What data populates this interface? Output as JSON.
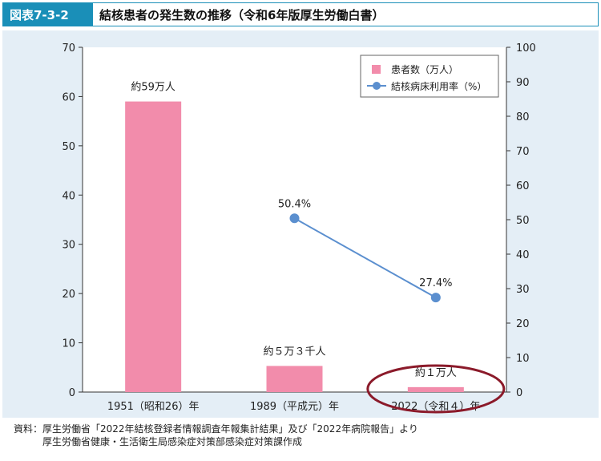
{
  "figure": {
    "label": "図表7-3-2",
    "title": "結核患者の発生数の推移（令和6年版厚生労働白書）"
  },
  "chart_data": {
    "type": "bar",
    "categories": [
      "1951（昭和26）年",
      "1989（平成元）年",
      "2022（令和４）年"
    ],
    "series": [
      {
        "name": "患者数（万人）",
        "type": "bar",
        "axis": "left",
        "values": [
          59,
          5.3,
          1
        ],
        "labels": [
          "約59万人",
          "約５万３千人",
          "約１万人"
        ],
        "color": "#f28cab"
      },
      {
        "name": "結核病床利用率（%）",
        "type": "line",
        "axis": "right",
        "values": [
          null,
          50.4,
          27.4
        ],
        "labels": [
          "",
          "50.4%",
          "27.4%"
        ],
        "color": "#5b8fcf"
      }
    ],
    "y_left": {
      "min": 0,
      "max": 70,
      "ticks": [
        0,
        10,
        20,
        30,
        40,
        50,
        60,
        70
      ]
    },
    "y_right": {
      "min": 0,
      "max": 100,
      "ticks": [
        0,
        10,
        20,
        30,
        40,
        50,
        60,
        70,
        80,
        90,
        100
      ]
    },
    "legend": {
      "placement": "top-right"
    },
    "highlight": {
      "category_index": 2,
      "shape": "ellipse",
      "color": "#8b1a2a"
    },
    "plot_background": "#ffffff",
    "panel_background": "#e4eef6"
  },
  "source": {
    "line1": "資料：厚生労働省「2022年結核登録者情報調査年報集計結果」及び「2022年病院報告」より",
    "line2": "厚生労働省健康・生活衛生局感染症対策部感染症対策課作成"
  }
}
